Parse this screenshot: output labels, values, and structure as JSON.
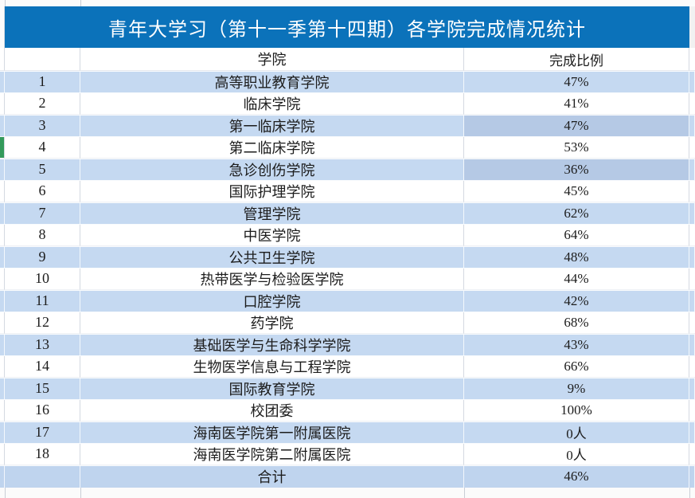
{
  "title": "青年大学习（第十一季第十四期）各学院完成情况统计",
  "columns": {
    "number": "",
    "college": "学院",
    "ratio": "完成比例"
  },
  "rows": [
    {
      "no": "1",
      "college": "高等职业教育学院",
      "ratio": "47%"
    },
    {
      "no": "2",
      "college": "临床学院",
      "ratio": "41%"
    },
    {
      "no": "3",
      "college": "第一临床学院",
      "ratio": "47%",
      "ratio_dark": true
    },
    {
      "no": "4",
      "college": "第二临床学院",
      "ratio": "53%",
      "edge_marker": true
    },
    {
      "no": "5",
      "college": "急诊创伤学院",
      "ratio": "36%",
      "ratio_dark": true
    },
    {
      "no": "6",
      "college": "国际护理学院",
      "ratio": "45%"
    },
    {
      "no": "7",
      "college": "管理学院",
      "ratio": "62%"
    },
    {
      "no": "8",
      "college": "中医学院",
      "ratio": "64%"
    },
    {
      "no": "9",
      "college": "公共卫生学院",
      "ratio": "48%"
    },
    {
      "no": "10",
      "college": "热带医学与检验医学院",
      "ratio": "44%"
    },
    {
      "no": "11",
      "college": "口腔学院",
      "ratio": "42%"
    },
    {
      "no": "12",
      "college": "药学院",
      "ratio": "68%"
    },
    {
      "no": "13",
      "college": "基础医学与生命科学学院",
      "ratio": "43%"
    },
    {
      "no": "14",
      "college": "生物医学信息与工程学院",
      "ratio": "66%"
    },
    {
      "no": "15",
      "college": "国际教育学院",
      "ratio": "9%"
    },
    {
      "no": "16",
      "college": "校团委",
      "ratio": "100%"
    },
    {
      "no": "17",
      "college": "海南医学院第一附属医院",
      "ratio": "0人"
    },
    {
      "no": "18",
      "college": "海南医学院第二附属医院",
      "ratio": "0人"
    }
  ],
  "total": {
    "label": "合计",
    "ratio": "46%"
  },
  "colors": {
    "title_bar": "#0b72ba",
    "alt_row": "#c5d9f1",
    "alt_row_dark": "#b5c9e5",
    "total_row": "#bfd4ee",
    "edge_marker_green": "#339a5b",
    "title_text": "#ffffff",
    "body_text": "#1c1c1c"
  }
}
